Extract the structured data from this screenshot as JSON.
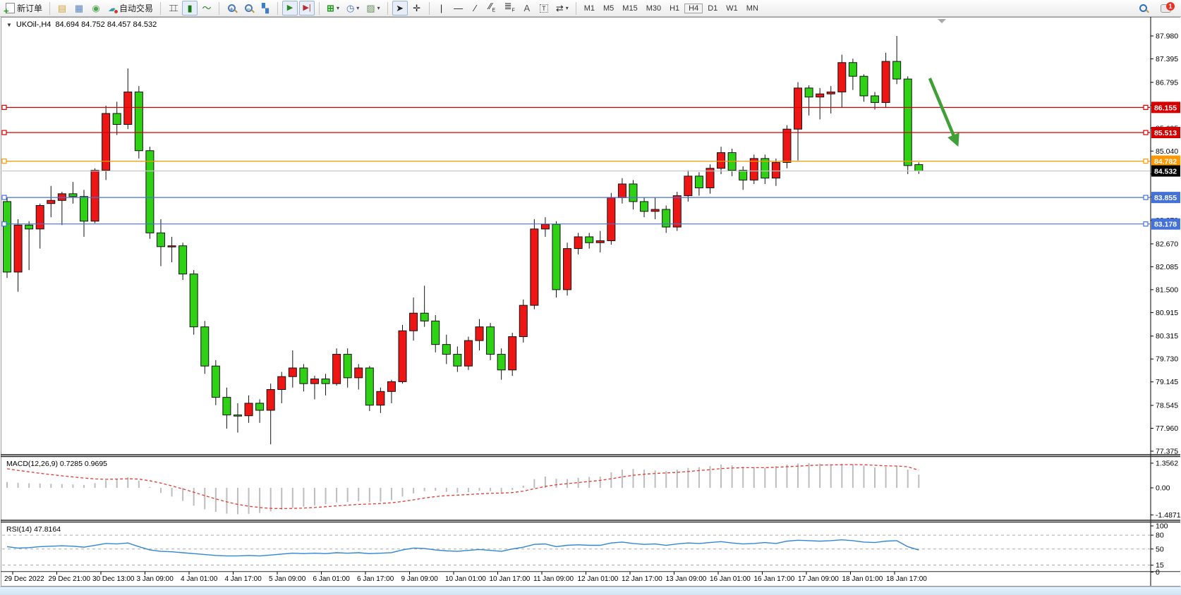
{
  "toolbar": {
    "new_order_label": "新订单",
    "auto_trading_label": "自动交易",
    "timeframes": [
      "M1",
      "M5",
      "M15",
      "M30",
      "H1",
      "H4",
      "D1",
      "W1",
      "MN"
    ],
    "active_timeframe": "H4",
    "notification_count": "1"
  },
  "chart": {
    "title_symbol": "UKOil-,H4",
    "title_ohlc": "84.694 84.752 84.457 84.532",
    "macd_label": "MACD(12,26,9) 0.7285 0.9695",
    "rsi_label": "RSI(14) 47.8164"
  },
  "chart_data": {
    "type": "candlestick",
    "symbol": "UKOil-",
    "timeframe": "H4",
    "current_bar": {
      "open": 84.694,
      "high": 84.752,
      "low": 84.457,
      "close": 84.532
    },
    "colors": {
      "up": "#ee1515",
      "down": "#2fd114",
      "outline": "#111111",
      "macd_hist": "#bdbdbd",
      "macd_signal": "#e53935",
      "rsi_line": "#2f86d5",
      "level_red": "#d40000",
      "level_orange": "#ff9800",
      "level_blue": "#4472d8",
      "current_line": "#c6c6c6",
      "current_badge": "#000000",
      "arrow": "#3fa037"
    },
    "price_ticks": [
      "87.980",
      "87.395",
      "86.795",
      "86.210",
      "85.625",
      "85.040",
      "84.455",
      "83.870",
      "83.270",
      "82.670",
      "82.085",
      "81.500",
      "80.915",
      "80.315",
      "79.730",
      "79.145",
      "78.545",
      "77.960",
      "77.375"
    ],
    "levels": [
      {
        "label": "86.155",
        "value": 86.155,
        "color": "#d40000"
      },
      {
        "label": "85.513",
        "value": 85.513,
        "color": "#d40000"
      },
      {
        "label": "84.782",
        "value": 84.782,
        "color": "#ff9800"
      },
      {
        "label": "83.855",
        "value": 83.855,
        "color": "#4472d8"
      },
      {
        "label": "83.178",
        "value": 83.178,
        "color": "#4472d8"
      }
    ],
    "current_price": {
      "label": "84.532",
      "value": 84.532
    },
    "time_labels": [
      "29 Dec 2022",
      "29 Dec 21:00",
      "30 Dec 13:00",
      "3 Jan 09:00",
      "4 Jan 01:00",
      "4 Jan 17:00",
      "5 Jan 09:00",
      "6 Jan 01:00",
      "6 Jan 17:00",
      "9 Jan 09:00",
      "10 Jan 01:00",
      "10 Jan 17:00",
      "11 Jan 09:00",
      "12 Jan 01:00",
      "12 Jan 17:00",
      "13 Jan 09:00",
      "16 Jan 01:00",
      "16 Jan 17:00",
      "17 Jan 09:00",
      "18 Jan 01:00",
      "18 Jan 17:00"
    ],
    "candles": [
      [
        83.75,
        83.85,
        81.8,
        81.95
      ],
      [
        81.95,
        83.3,
        81.45,
        83.15
      ],
      [
        83.15,
        83.25,
        82.0,
        83.05
      ],
      [
        83.05,
        83.7,
        82.55,
        83.65
      ],
      [
        83.7,
        84.15,
        83.35,
        83.78
      ],
      [
        83.78,
        84.0,
        83.15,
        83.95
      ],
      [
        83.95,
        84.25,
        83.7,
        83.88
      ],
      [
        83.88,
        84.05,
        82.85,
        83.25
      ],
      [
        83.25,
        84.6,
        83.2,
        84.55
      ],
      [
        84.55,
        86.2,
        84.3,
        86.0
      ],
      [
        86.0,
        86.3,
        85.45,
        85.72
      ],
      [
        85.72,
        87.15,
        85.6,
        86.55
      ],
      [
        86.55,
        86.7,
        84.85,
        85.05
      ],
      [
        85.05,
        85.15,
        82.8,
        82.95
      ],
      [
        82.95,
        83.3,
        82.1,
        82.6
      ],
      [
        82.6,
        82.85,
        82.2,
        82.62
      ],
      [
        82.62,
        82.7,
        81.75,
        81.9
      ],
      [
        81.9,
        82.0,
        80.35,
        80.55
      ],
      [
        80.55,
        80.7,
        79.35,
        79.55
      ],
      [
        79.55,
        79.7,
        78.55,
        78.75
      ],
      [
        78.75,
        79.0,
        77.95,
        78.3
      ],
      [
        78.3,
        78.6,
        77.85,
        78.28
      ],
      [
        78.28,
        78.8,
        78.1,
        78.6
      ],
      [
        78.6,
        78.7,
        78.1,
        78.42
      ],
      [
        78.42,
        79.1,
        77.55,
        78.95
      ],
      [
        78.95,
        79.4,
        78.6,
        79.28
      ],
      [
        79.28,
        79.95,
        79.0,
        79.5
      ],
      [
        79.5,
        79.6,
        78.9,
        79.1
      ],
      [
        79.1,
        79.3,
        78.7,
        79.22
      ],
      [
        79.22,
        79.35,
        78.8,
        79.1
      ],
      [
        79.1,
        80.0,
        79.05,
        79.85
      ],
      [
        79.85,
        80.0,
        79.0,
        79.25
      ],
      [
        79.25,
        79.6,
        78.95,
        79.5
      ],
      [
        79.5,
        79.55,
        78.4,
        78.55
      ],
      [
        78.55,
        79.0,
        78.35,
        78.9
      ],
      [
        78.9,
        79.2,
        78.6,
        79.15
      ],
      [
        79.15,
        80.6,
        79.1,
        80.45
      ],
      [
        80.45,
        81.3,
        80.2,
        80.9
      ],
      [
        80.9,
        81.6,
        80.55,
        80.7
      ],
      [
        80.7,
        80.85,
        79.9,
        80.1
      ],
      [
        80.1,
        80.35,
        79.6,
        79.85
      ],
      [
        79.85,
        80.05,
        79.4,
        79.55
      ],
      [
        79.55,
        80.3,
        79.45,
        80.2
      ],
      [
        80.2,
        80.75,
        79.95,
        80.55
      ],
      [
        80.55,
        80.65,
        79.7,
        79.85
      ],
      [
        79.85,
        80.0,
        79.2,
        79.45
      ],
      [
        79.45,
        80.4,
        79.3,
        80.3
      ],
      [
        80.3,
        81.25,
        80.15,
        81.1
      ],
      [
        81.1,
        83.3,
        81.0,
        83.05
      ],
      [
        83.05,
        83.35,
        82.85,
        83.17
      ],
      [
        83.17,
        83.25,
        81.3,
        81.5
      ],
      [
        81.5,
        82.7,
        81.35,
        82.55
      ],
      [
        82.55,
        82.95,
        82.4,
        82.85
      ],
      [
        82.85,
        82.95,
        82.55,
        82.7
      ],
      [
        82.7,
        83.0,
        82.45,
        82.75
      ],
      [
        82.75,
        83.97,
        82.65,
        83.85
      ],
      [
        83.85,
        84.35,
        83.7,
        84.2
      ],
      [
        84.2,
        84.3,
        83.55,
        83.75
      ],
      [
        83.75,
        83.85,
        83.35,
        83.5
      ],
      [
        83.5,
        83.85,
        83.3,
        83.55
      ],
      [
        83.55,
        83.65,
        82.95,
        83.1
      ],
      [
        83.1,
        84.0,
        83.0,
        83.9
      ],
      [
        83.9,
        84.55,
        83.75,
        84.4
      ],
      [
        84.4,
        84.5,
        83.9,
        84.1
      ],
      [
        84.1,
        84.7,
        83.95,
        84.6
      ],
      [
        84.6,
        85.15,
        84.45,
        85.0
      ],
      [
        85.0,
        85.1,
        84.4,
        84.55
      ],
      [
        84.55,
        84.65,
        84.05,
        84.3
      ],
      [
        84.3,
        84.95,
        84.2,
        84.85
      ],
      [
        84.85,
        84.95,
        84.2,
        84.35
      ],
      [
        84.35,
        84.85,
        84.15,
        84.75
      ],
      [
        84.75,
        85.7,
        84.6,
        85.6
      ],
      [
        85.6,
        86.8,
        84.8,
        86.65
      ],
      [
        86.65,
        86.72,
        85.95,
        86.42
      ],
      [
        86.42,
        86.65,
        85.85,
        86.5
      ],
      [
        86.5,
        86.7,
        86.0,
        86.55
      ],
      [
        86.55,
        87.5,
        86.15,
        87.3
      ],
      [
        87.3,
        87.4,
        86.6,
        86.95
      ],
      [
        86.95,
        87.0,
        86.3,
        86.45
      ],
      [
        86.45,
        86.55,
        86.1,
        86.28
      ],
      [
        86.28,
        87.55,
        86.15,
        87.33
      ],
      [
        87.33,
        87.98,
        86.75,
        86.88
      ],
      [
        86.88,
        86.95,
        84.45,
        84.67
      ],
      [
        84.694,
        84.752,
        84.457,
        84.532
      ]
    ],
    "indicators": {
      "macd": {
        "name": "MACD",
        "params": "12,26,9",
        "value": "0.7285",
        "signal_value": "0.9695",
        "scale_labels": [
          "1.3562",
          "0.00",
          "-1.4871"
        ],
        "scale_values": [
          1.3562,
          0.0,
          -1.4871
        ],
        "histogram": [
          0.32,
          0.28,
          0.25,
          0.24,
          0.22,
          0.21,
          0.19,
          0.16,
          0.26,
          0.42,
          0.5,
          0.58,
          0.4,
          0.05,
          -0.28,
          -0.48,
          -0.72,
          -0.98,
          -1.18,
          -1.32,
          -1.42,
          -1.45,
          -1.43,
          -1.38,
          -1.3,
          -1.2,
          -1.1,
          -1.04,
          -0.97,
          -0.9,
          -0.8,
          -0.78,
          -0.74,
          -0.8,
          -0.76,
          -0.68,
          -0.48,
          -0.3,
          -0.18,
          -0.16,
          -0.22,
          -0.28,
          -0.24,
          -0.16,
          -0.18,
          -0.26,
          -0.12,
          0.12,
          0.48,
          0.62,
          0.5,
          0.48,
          0.55,
          0.6,
          0.62,
          0.85,
          1.0,
          1.04,
          1.0,
          0.96,
          0.92,
          1.0,
          1.1,
          1.14,
          1.2,
          1.28,
          1.24,
          1.16,
          1.14,
          1.1,
          1.2,
          1.28,
          1.34,
          1.3562,
          1.34,
          1.3,
          1.33,
          1.3,
          1.22,
          1.12,
          1.16,
          1.2,
          1.0,
          0.7285
        ],
        "signal_series": [
          1.05,
          0.96,
          0.88,
          0.8,
          0.73,
          0.66,
          0.6,
          0.54,
          0.49,
          0.47,
          0.48,
          0.5,
          0.48,
          0.39,
          0.26,
          0.11,
          -0.06,
          -0.24,
          -0.43,
          -0.61,
          -0.77,
          -0.91,
          -1.01,
          -1.08,
          -1.13,
          -1.14,
          -1.13,
          -1.11,
          -1.08,
          -1.04,
          -0.99,
          -0.95,
          -0.91,
          -0.89,
          -0.86,
          -0.82,
          -0.75,
          -0.66,
          -0.56,
          -0.48,
          -0.43,
          -0.4,
          -0.37,
          -0.33,
          -0.3,
          -0.29,
          -0.26,
          -0.18,
          -0.05,
          0.08,
          0.17,
          0.23,
          0.29,
          0.35,
          0.41,
          0.5,
          0.6,
          0.69,
          0.75,
          0.79,
          0.82,
          0.85,
          0.9,
          0.95,
          1.0,
          1.06,
          1.09,
          1.11,
          1.11,
          1.11,
          1.13,
          1.16,
          1.19,
          1.23,
          1.25,
          1.26,
          1.27,
          1.28,
          1.27,
          1.24,
          1.21,
          1.2,
          1.16,
          0.9695
        ]
      },
      "rsi": {
        "name": "RSI",
        "params": "14",
        "value": "47.8164",
        "scale_labels": [
          "100",
          "80",
          "50",
          "15",
          "0"
        ],
        "scale_values": [
          100,
          80,
          50,
          15,
          0
        ],
        "guide_levels": [
          80,
          50,
          15
        ],
        "values": [
          55,
          52,
          53,
          55,
          56,
          57,
          56,
          54,
          58,
          62,
          61,
          63,
          55,
          48,
          45,
          44,
          42,
          40,
          38,
          36,
          35,
          35,
          36,
          35,
          37,
          39,
          41,
          40,
          41,
          40,
          42,
          41,
          42,
          40,
          41,
          42,
          48,
          52,
          51,
          48,
          46,
          45,
          47,
          49,
          47,
          45,
          50,
          54,
          60,
          61,
          55,
          58,
          59,
          58,
          58,
          63,
          65,
          62,
          60,
          61,
          58,
          61,
          63,
          62,
          64,
          66,
          63,
          61,
          62,
          64,
          62,
          67,
          69,
          68,
          67,
          68,
          70,
          68,
          65,
          64,
          67,
          68,
          55,
          47.8164
        ]
      }
    },
    "annotation_arrow": {
      "from_bar": 84,
      "from_price": 86.9,
      "to_bar": 86.6,
      "to_price": 85.15
    }
  }
}
